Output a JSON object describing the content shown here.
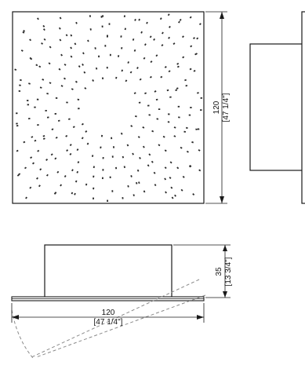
{
  "drawing": {
    "front_view": {
      "height_dimension": {
        "value": "120",
        "inches": "[47 1/4\"]"
      }
    },
    "side_view": {},
    "plan_view": {
      "depth_dimension": {
        "value": "35",
        "inches": "[13 3/4\"]"
      },
      "width_dimension": {
        "value": "120",
        "inches": "[47 1/4\"]"
      }
    }
  },
  "colors": {
    "line": "#1a1a1a",
    "dots": "#2a2a2a",
    "dashed": "#8a8a8a"
  }
}
